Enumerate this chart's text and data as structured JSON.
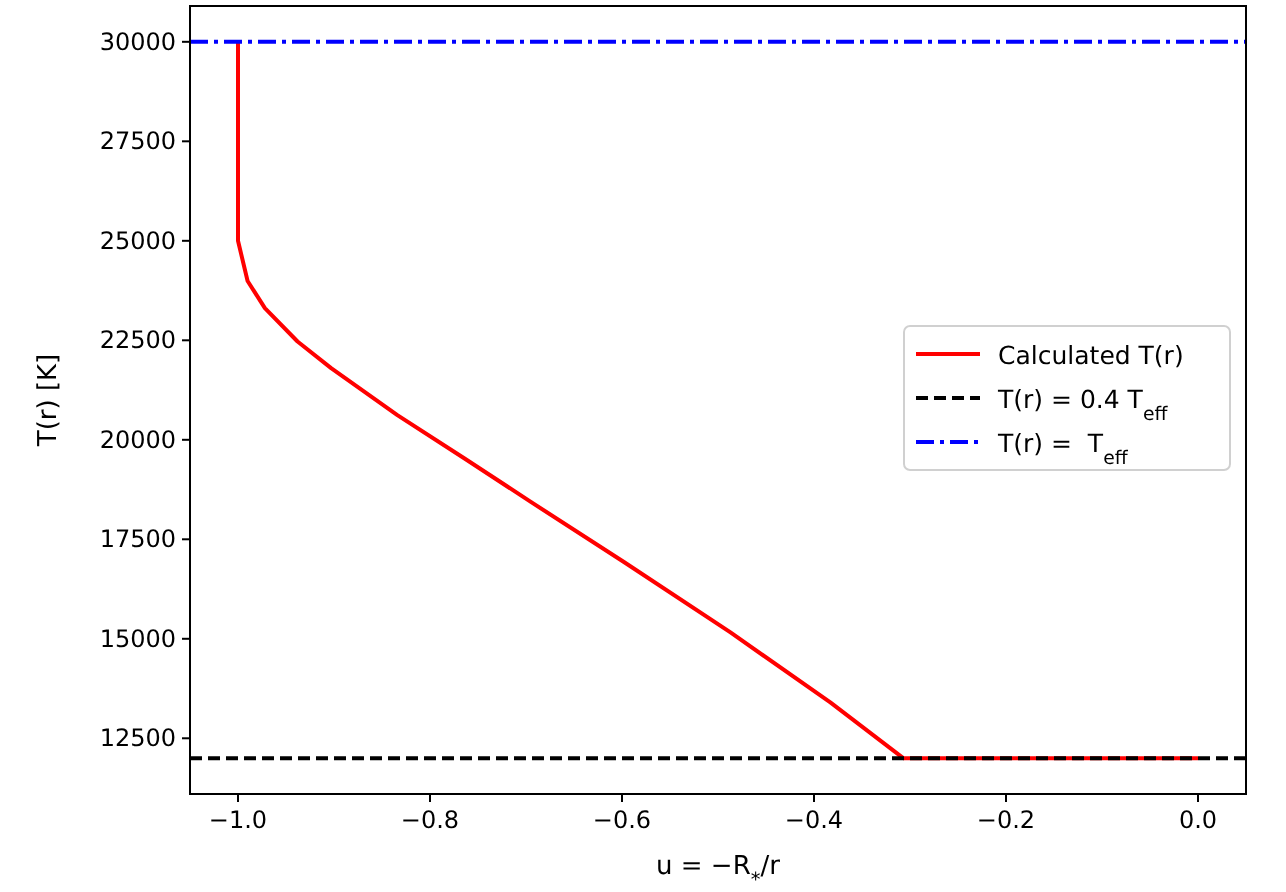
{
  "chart_data": {
    "type": "line",
    "xlabel": "u = −R$_{*}$/r",
    "ylabel": "T(r) [K]",
    "xlim": [
      -1.05,
      0.05
    ],
    "ylim": [
      11100,
      30900
    ],
    "xticks": [
      {
        "value": -1,
        "label": "−1.0"
      },
      {
        "value": -0.8,
        "label": "−0.8"
      },
      {
        "value": -0.6,
        "label": "−0.6"
      },
      {
        "value": -0.4,
        "label": "−0.4"
      },
      {
        "value": -0.2,
        "label": "−0.2"
      },
      {
        "value": 0,
        "label": "0.0"
      }
    ],
    "yticks": [
      12500,
      15000,
      17500,
      20000,
      22500,
      25000,
      27500,
      30000
    ],
    "grid": false,
    "legend": "right",
    "line_style": "solid",
    "marker": "none",
    "series": [
      {
        "name": "Calculated T(r)",
        "color": "#ff0000",
        "x": [
          -1,
          -1,
          -0.99,
          -0.972,
          -0.938,
          -0.903,
          -0.834,
          -0.764,
          -0.695,
          -0.598,
          -0.487,
          -0.383,
          -0.307,
          0
        ],
        "values": [
          30000,
          25000,
          23990,
          23310,
          22470,
          21800,
          20620,
          19530,
          18440,
          16930,
          15160,
          13400,
          12000,
          12000
        ]
      },
      {
        "name": "T(r) = 0.4 T$_{eff}$",
        "color": "#000000",
        "line_style": "dashed",
        "x": [
          -1.05,
          0.05
        ],
        "values": [
          12000,
          12000
        ]
      },
      {
        "name": "T(r) =  T$_{eff}$",
        "color": "#0000ff",
        "line_style": "dashdot",
        "x": [
          -1.05,
          0.05
        ],
        "values": [
          30000,
          30000
        ]
      }
    ]
  }
}
